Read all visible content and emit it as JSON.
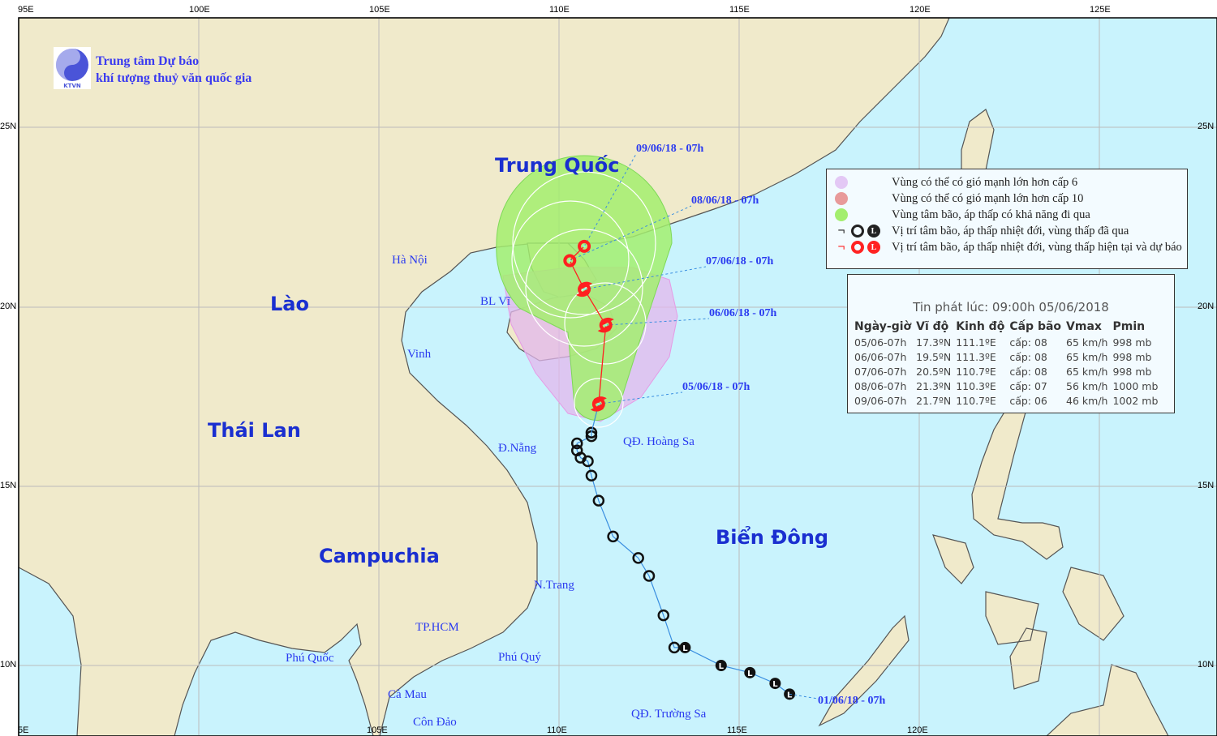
{
  "organization": {
    "line1": "Trung tâm Dự báo",
    "line2": "khí tượng thuỷ văn quốc gia",
    "logo_text": "KTVN"
  },
  "axes": {
    "top_lon_labels": [
      "95E",
      "100E",
      "105E",
      "110E",
      "115E",
      "120E",
      "125E"
    ],
    "bottom_lon_labels": [
      "5E",
      "105E",
      "110E",
      "115E",
      "120E"
    ],
    "lat_labels": [
      "25N",
      "20N",
      "15N",
      "10N"
    ]
  },
  "countries": [
    "Trung Quốc",
    "Lào",
    "Thái Lan",
    "Campuchia",
    "Biển Đông"
  ],
  "cities": [
    "Hà Nội",
    "BL Vĩ",
    "Vinh",
    "Đ.Nẵng",
    "QĐ. Hoàng Sa",
    "N.Trang",
    "TP.HCM",
    "Phú Quốc",
    "Phú Quý",
    "Cà Mau",
    "Côn Đảo",
    "QĐ. Trường Sa"
  ],
  "colors": {
    "sea": "#c9f3fd",
    "land": "#f0eacb",
    "cone_green": "#a3ee6e",
    "wind_cap6": "#e3b7ec",
    "wind_cap10": "#e89a9a",
    "current_track": "#ff2020",
    "past_track": "#000000"
  },
  "legend": [
    {
      "icon": "purple-circle",
      "text": "Vùng có thể có gió mạnh lớn hơn cấp 6"
    },
    {
      "icon": "red-circle",
      "text": "Vùng có thể có gió mạnh lớn hơn cấp 10"
    },
    {
      "icon": "green-circle",
      "text": "Vùng tâm bão, áp thấp có khả năng đi qua"
    },
    {
      "icon": "black-storm-depression-low",
      "text": "Vị trí tâm bão, áp thấp nhiệt đới, vùng thấp đã qua"
    },
    {
      "icon": "red-storm-depression-low",
      "text": "Vị trí tâm bão, áp thấp nhiệt đới, vùng thấp hiện tại và dự báo"
    }
  ],
  "bulletin": {
    "title": "Tin phát lúc: 09:00h 05/06/2018",
    "headers": [
      "Ngày-giờ",
      "Vĩ độ",
      "Kinh độ",
      "Cấp bão",
      "Vmax",
      "Pmin"
    ],
    "rows": [
      [
        "05/06-07h",
        "17.3ºN",
        "111.1ºE",
        "cấp: 08",
        "65 km/h",
        "998 mb"
      ],
      [
        "06/06-07h",
        "19.5ºN",
        "111.3ºE",
        "cấp: 08",
        "65 km/h",
        "998 mb"
      ],
      [
        "07/06-07h",
        "20.5ºN",
        "110.7ºE",
        "cấp: 08",
        "65 km/h",
        "998 mb"
      ],
      [
        "08/06-07h",
        "21.3ºN",
        "110.3ºE",
        "cấp: 07",
        "56 km/h",
        "1000 mb"
      ],
      [
        "09/06-07h",
        "21.7ºN",
        "110.7ºE",
        "cấp: 06",
        "46 km/h",
        "1002 mb"
      ]
    ]
  },
  "forecast_track": [
    {
      "label": "05/06/18 - 07h",
      "lat": 17.3,
      "lon": 111.1
    },
    {
      "label": "06/06/18 - 07h",
      "lat": 19.5,
      "lon": 111.3
    },
    {
      "label": "07/06/18 - 07h",
      "lat": 20.5,
      "lon": 110.7
    },
    {
      "label": "08/06/18 - 07h",
      "lat": 21.3,
      "lon": 110.3
    },
    {
      "label": "09/06/18 - 07h",
      "lat": 21.7,
      "lon": 110.7
    }
  ],
  "past_track_start_label": "01/06/18 - 07h",
  "past_track": [
    {
      "lat": 16.5,
      "lon": 110.9,
      "type": "depression"
    },
    {
      "lat": 16.4,
      "lon": 110.9,
      "type": "depression"
    },
    {
      "lat": 16.2,
      "lon": 110.5,
      "type": "depression"
    },
    {
      "lat": 16.0,
      "lon": 110.5,
      "type": "depression"
    },
    {
      "lat": 15.8,
      "lon": 110.6,
      "type": "depression"
    },
    {
      "lat": 15.7,
      "lon": 110.8,
      "type": "depression"
    },
    {
      "lat": 15.3,
      "lon": 110.9,
      "type": "depression"
    },
    {
      "lat": 14.6,
      "lon": 111.1,
      "type": "depression"
    },
    {
      "lat": 13.6,
      "lon": 111.5,
      "type": "depression"
    },
    {
      "lat": 13.0,
      "lon": 112.2,
      "type": "depression"
    },
    {
      "lat": 12.5,
      "lon": 112.5,
      "type": "depression"
    },
    {
      "lat": 11.4,
      "lon": 112.9,
      "type": "depression"
    },
    {
      "lat": 10.5,
      "lon": 113.2,
      "type": "depression"
    },
    {
      "lat": 10.5,
      "lon": 113.5,
      "type": "low"
    },
    {
      "lat": 10.0,
      "lon": 114.5,
      "type": "low"
    },
    {
      "lat": 9.8,
      "lon": 115.3,
      "type": "low"
    },
    {
      "lat": 9.5,
      "lon": 116.0,
      "type": "low"
    },
    {
      "lat": 9.2,
      "lon": 116.4,
      "type": "low"
    }
  ]
}
